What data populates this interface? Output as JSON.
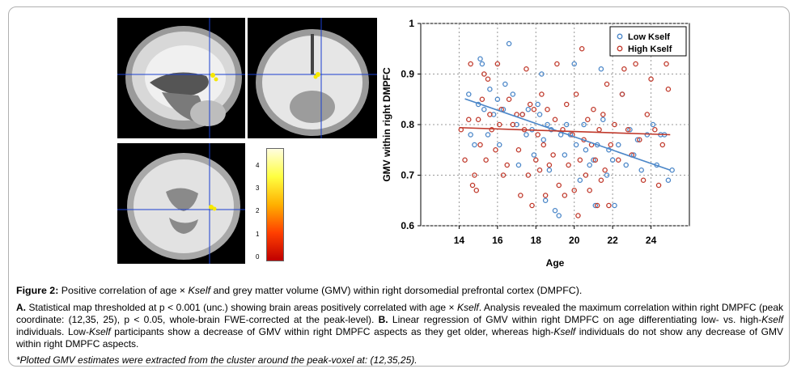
{
  "figure": {
    "colorbar_ticks": [
      "4",
      "3",
      "2",
      "1",
      "0"
    ],
    "caption": {
      "title_prefix": "Figure 2:",
      "title_text_1": " Positive correlation of age × ",
      "title_italic": "Kself",
      "title_text_2": " and grey matter volume (GMV) within right dorsomedial prefrontal cortex (DMPFC).",
      "body_a_label": "A.",
      "body_1": " Statistical map thresholded at p < 0.001 (unc.) showing brain areas positively correlated with age × ",
      "body_kself_1": "Kself",
      "body_2": ". Analysis revealed the maximum correlation within right DMPFC (peak coordinate: (12,35, 25), p < 0.05, whole-brain FWE-corrected at the peak-level). ",
      "body_b_label": "B.",
      "body_3": " Linear regression of GMV within right DMPFC on age differentiating low- vs. high-",
      "body_kself_2": "Kself",
      "body_4": " individuals. Low-",
      "body_kself_3": "Kself",
      "body_5": " participants show a decrease of GMV within right DMPFC aspects as they get older, whereas high-",
      "body_kself_4": "Kself",
      "body_6": " individuals do not show any decrease of GMV within right DMPFC aspects.",
      "footnote": "*Plotted GMV estimates were extracted from the cluster around the peak-voxel at: (12,35,25)."
    }
  },
  "chart_data": {
    "type": "scatter",
    "xlabel": "Age",
    "ylabel": "GMV within right DMPFC",
    "xlim": [
      12,
      26
    ],
    "ylim": [
      0.6,
      1.0
    ],
    "x_ticks": [
      "14",
      "16",
      "18",
      "20",
      "22",
      "24"
    ],
    "y_ticks": [
      "0.6",
      "0.7",
      "0.8",
      "0.9",
      "1"
    ],
    "grid": true,
    "legend_position": "top-right",
    "series": [
      {
        "name": "Low Kself",
        "color": "#4a86c8",
        "fit": [
          [
            14.3,
            0.851
          ],
          [
            25.0,
            0.71
          ]
        ],
        "points": [
          [
            14.5,
            0.86
          ],
          [
            14.6,
            0.78
          ],
          [
            14.8,
            0.76
          ],
          [
            15.0,
            0.84
          ],
          [
            15.1,
            0.93
          ],
          [
            15.2,
            0.92
          ],
          [
            15.3,
            0.83
          ],
          [
            15.5,
            0.78
          ],
          [
            15.6,
            0.87
          ],
          [
            15.8,
            0.82
          ],
          [
            16.0,
            0.85
          ],
          [
            16.1,
            0.76
          ],
          [
            16.3,
            0.83
          ],
          [
            16.4,
            0.88
          ],
          [
            16.6,
            0.96
          ],
          [
            16.8,
            0.86
          ],
          [
            17.0,
            0.8
          ],
          [
            17.1,
            0.72
          ],
          [
            17.3,
            0.82
          ],
          [
            17.5,
            0.78
          ],
          [
            17.6,
            0.83
          ],
          [
            17.8,
            0.79
          ],
          [
            17.9,
            0.74
          ],
          [
            18.1,
            0.84
          ],
          [
            18.2,
            0.82
          ],
          [
            18.3,
            0.9
          ],
          [
            18.4,
            0.77
          ],
          [
            18.5,
            0.65
          ],
          [
            18.6,
            0.8
          ],
          [
            18.7,
            0.71
          ],
          [
            18.8,
            0.79
          ],
          [
            19.0,
            0.63
          ],
          [
            19.2,
            0.62
          ],
          [
            19.3,
            0.78
          ],
          [
            19.5,
            0.74
          ],
          [
            19.6,
            0.8
          ],
          [
            19.8,
            0.78
          ],
          [
            20.0,
            0.92
          ],
          [
            20.1,
            0.76
          ],
          [
            20.3,
            0.69
          ],
          [
            20.5,
            0.8
          ],
          [
            20.6,
            0.75
          ],
          [
            20.8,
            0.72
          ],
          [
            21.0,
            0.73
          ],
          [
            21.1,
            0.64
          ],
          [
            21.2,
            0.76
          ],
          [
            21.4,
            0.91
          ],
          [
            21.5,
            0.81
          ],
          [
            21.7,
            0.7
          ],
          [
            21.8,
            0.75
          ],
          [
            22.0,
            0.73
          ],
          [
            22.1,
            0.64
          ],
          [
            22.3,
            0.76
          ],
          [
            22.5,
            0.86
          ],
          [
            22.7,
            0.72
          ],
          [
            22.9,
            0.79
          ],
          [
            23.1,
            0.74
          ],
          [
            23.3,
            0.77
          ],
          [
            23.5,
            0.71
          ],
          [
            23.8,
            0.78
          ],
          [
            24.1,
            0.8
          ],
          [
            24.3,
            0.72
          ],
          [
            24.5,
            0.78
          ],
          [
            24.7,
            0.78
          ],
          [
            24.9,
            0.69
          ],
          [
            25.1,
            0.71
          ]
        ]
      },
      {
        "name": "High Kself",
        "color": "#c0392b",
        "fit": [
          [
            14.0,
            0.794
          ],
          [
            25.0,
            0.78
          ]
        ],
        "points": [
          [
            14.1,
            0.79
          ],
          [
            14.3,
            0.73
          ],
          [
            14.5,
            0.81
          ],
          [
            14.6,
            0.92
          ],
          [
            14.7,
            0.68
          ],
          [
            14.8,
            0.7
          ],
          [
            14.9,
            0.67
          ],
          [
            15.0,
            0.81
          ],
          [
            15.1,
            0.76
          ],
          [
            15.2,
            0.85
          ],
          [
            15.3,
            0.9
          ],
          [
            15.4,
            0.73
          ],
          [
            15.5,
            0.89
          ],
          [
            15.6,
            0.82
          ],
          [
            15.7,
            0.79
          ],
          [
            15.9,
            0.75
          ],
          [
            16.0,
            0.92
          ],
          [
            16.1,
            0.8
          ],
          [
            16.2,
            0.83
          ],
          [
            16.3,
            0.7
          ],
          [
            16.5,
            0.72
          ],
          [
            16.6,
            0.85
          ],
          [
            16.8,
            0.8
          ],
          [
            17.0,
            0.82
          ],
          [
            17.1,
            0.75
          ],
          [
            17.2,
            0.66
          ],
          [
            17.3,
            0.82
          ],
          [
            17.4,
            0.79
          ],
          [
            17.5,
            0.91
          ],
          [
            17.6,
            0.7
          ],
          [
            17.7,
            0.84
          ],
          [
            17.8,
            0.64
          ],
          [
            17.9,
            0.83
          ],
          [
            18.0,
            0.73
          ],
          [
            18.1,
            0.78
          ],
          [
            18.2,
            0.71
          ],
          [
            18.3,
            0.86
          ],
          [
            18.4,
            0.76
          ],
          [
            18.5,
            0.66
          ],
          [
            18.6,
            0.83
          ],
          [
            18.7,
            0.72
          ],
          [
            18.9,
            0.74
          ],
          [
            19.0,
            0.81
          ],
          [
            19.1,
            0.92
          ],
          [
            19.2,
            0.68
          ],
          [
            19.4,
            0.79
          ],
          [
            19.5,
            0.66
          ],
          [
            19.6,
            0.84
          ],
          [
            19.7,
            0.72
          ],
          [
            19.9,
            0.78
          ],
          [
            20.0,
            0.67
          ],
          [
            20.1,
            0.86
          ],
          [
            20.2,
            0.62
          ],
          [
            20.3,
            0.73
          ],
          [
            20.4,
            0.95
          ],
          [
            20.5,
            0.77
          ],
          [
            20.6,
            0.7
          ],
          [
            20.7,
            0.81
          ],
          [
            20.8,
            0.67
          ],
          [
            20.9,
            0.76
          ],
          [
            21.0,
            0.83
          ],
          [
            21.1,
            0.73
          ],
          [
            21.2,
            0.64
          ],
          [
            21.3,
            0.79
          ],
          [
            21.4,
            0.69
          ],
          [
            21.5,
            0.82
          ],
          [
            21.6,
            0.71
          ],
          [
            21.7,
            0.88
          ],
          [
            21.8,
            0.64
          ],
          [
            21.9,
            0.76
          ],
          [
            22.1,
            0.8
          ],
          [
            22.3,
            0.73
          ],
          [
            22.5,
            0.86
          ],
          [
            22.6,
            0.91
          ],
          [
            22.8,
            0.79
          ],
          [
            23.0,
            0.74
          ],
          [
            23.2,
            0.92
          ],
          [
            23.4,
            0.77
          ],
          [
            23.6,
            0.69
          ],
          [
            23.8,
            0.82
          ],
          [
            24.0,
            0.89
          ],
          [
            24.2,
            0.79
          ],
          [
            24.4,
            0.68
          ],
          [
            24.6,
            0.76
          ],
          [
            24.8,
            0.92
          ],
          [
            24.9,
            0.87
          ]
        ]
      }
    ]
  }
}
